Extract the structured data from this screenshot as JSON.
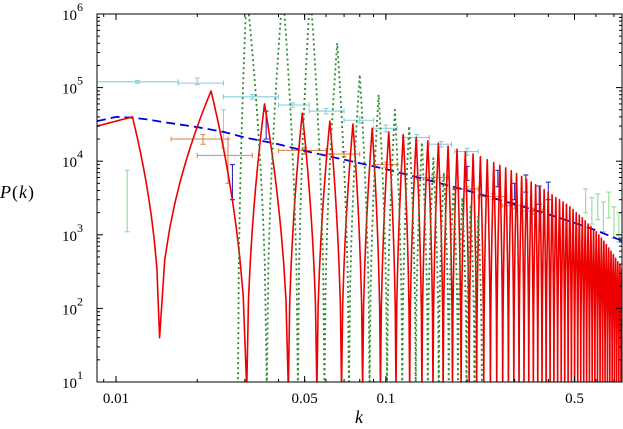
{
  "chart_data": {
    "type": "line",
    "title": "",
    "xlabel": "k",
    "ylabel": "P(k)",
    "ylabel_parts": {
      "symbol": "P",
      "open": "(",
      "var": "k",
      "close": ")"
    },
    "x_scale": "log",
    "y_scale": "log",
    "xlim": [
      0.0085,
      0.75
    ],
    "ylim": [
      10,
      1000000
    ],
    "x_ticks": [
      {
        "value": 0.01,
        "label": "0.01"
      },
      {
        "value": 0.05,
        "label": "0.05"
      },
      {
        "value": 0.1,
        "label": "0.1"
      },
      {
        "value": 0.5,
        "label": "0.5"
      }
    ],
    "y_ticks": [
      {
        "value": 10,
        "base": "10",
        "exp": "1"
      },
      {
        "value": 100,
        "base": "10",
        "exp": "2"
      },
      {
        "value": 1000,
        "base": "10",
        "exp": "3"
      },
      {
        "value": 10000,
        "base": "10",
        "exp": "4"
      },
      {
        "value": 100000,
        "base": "10",
        "exp": "5"
      },
      {
        "value": 1000000,
        "base": "10",
        "exp": "6"
      }
    ],
    "grid": false,
    "legend": "none",
    "series": [
      {
        "style": "dashed",
        "color": "#0000dd",
        "x": [
          0.0085,
          0.01,
          0.0115,
          0.013,
          0.015,
          0.02,
          0.025,
          0.03,
          0.04,
          0.05,
          0.07,
          0.1,
          0.15,
          0.2,
          0.3,
          0.4,
          0.5,
          0.6,
          0.75
        ],
        "y": [
          35000,
          40000,
          39000,
          37000,
          34000,
          29000,
          25000,
          21000,
          17000,
          13800,
          10500,
          7800,
          5300,
          4000,
          2600,
          1900,
          1450,
          1150,
          830
        ]
      },
      {
        "style": "solid",
        "color": "#ee0000",
        "peaks_x": [
          0.0085,
          0.0115,
          0.0225,
          0.0355,
          0.049,
          0.062,
          0.0755,
          0.089,
          0.1025,
          0.116,
          0.1295,
          0.143,
          0.1565,
          0.17,
          0.1835,
          0.197,
          0.2105,
          0.224,
          0.2375,
          0.251,
          0.2645,
          0.278,
          0.2915,
          0.305,
          0.3185,
          0.332,
          0.3455,
          0.359,
          0.3725,
          0.386,
          0.3995,
          0.413,
          0.4265,
          0.44,
          0.4535,
          0.467,
          0.4805,
          0.494,
          0.5075,
          0.521,
          0.5345,
          0.548,
          0.5615,
          0.575,
          0.5885,
          0.602,
          0.6155,
          0.629,
          0.6425,
          0.656,
          0.6695,
          0.683,
          0.6965,
          0.71,
          0.7235,
          0.737,
          0.75
        ],
        "peaks_y": [
          30000,
          40000,
          90000,
          60000,
          45000,
          35000,
          32000,
          28000,
          25000,
          23000,
          21000,
          19000,
          17500,
          16000,
          14500,
          13500,
          12500,
          11500,
          10500,
          9600,
          8800,
          8100,
          7400,
          6800,
          6200,
          5700,
          5200,
          4800,
          4400,
          4100,
          3800,
          3500,
          3200,
          3000,
          2800,
          2600,
          2400,
          2200,
          2000,
          1850,
          1700,
          1550,
          1400,
          1300,
          1200,
          1100,
          1000,
          900,
          820,
          740,
          660,
          600,
          540,
          480,
          430,
          390,
          350
        ],
        "troughs_x": [
          0.0145,
          0.0305,
          0.0435,
          0.0555,
          0.0685,
          0.082,
          0.0955,
          0.109,
          0.1225,
          0.136,
          0.1495,
          0.163,
          0.1765,
          0.19,
          0.2035,
          0.217,
          0.2305,
          0.244,
          0.2575,
          0.271,
          0.2845,
          0.298,
          0.3115,
          0.325,
          0.3385,
          0.352,
          0.3655,
          0.379,
          0.3925,
          0.406,
          0.4195,
          0.433,
          0.4465,
          0.46,
          0.4735,
          0.487,
          0.5005,
          0.514,
          0.5275,
          0.541,
          0.5545,
          0.568,
          0.5815,
          0.595,
          0.6085,
          0.622,
          0.6355,
          0.649,
          0.6625,
          0.676,
          0.6895,
          0.703,
          0.7165,
          0.73,
          0.7435
        ],
        "troughs_y": [
          40,
          8,
          8,
          8,
          8,
          8,
          8,
          8,
          8,
          8,
          8,
          8,
          8,
          8,
          8,
          8,
          8,
          8,
          8,
          8,
          8,
          8,
          8,
          8,
          8,
          8,
          8,
          8,
          8,
          8,
          8,
          8,
          8,
          8,
          8,
          8,
          8,
          8,
          8,
          8,
          8,
          8,
          8,
          8,
          8,
          8,
          8,
          8,
          8,
          8,
          8,
          8,
          8,
          8,
          8
        ]
      },
      {
        "style": "dotted",
        "color": "#2e8b2e",
        "peaks_x": [
          0.0305,
          0.0415,
          0.0525,
          0.066,
          0.08,
          0.094,
          0.108,
          0.122,
          0.136,
          0.15,
          0.164,
          0.178,
          0.192,
          0.206,
          0.22
        ],
        "peaks_y": [
          2000000,
          2000000,
          2000000,
          400000,
          150000,
          80000,
          50000,
          30000,
          18000,
          11000,
          7000,
          4500,
          3200,
          2400,
          1800
        ],
        "troughs_x": [
          0.0283,
          0.0362,
          0.0472,
          0.0592,
          0.073,
          0.087,
          0.101,
          0.115,
          0.129,
          0.143,
          0.157,
          0.171,
          0.185,
          0.199,
          0.213,
          0.227
        ],
        "troughs_y": [
          8,
          8,
          8,
          8,
          8,
          8,
          8,
          8,
          8,
          8,
          8,
          8,
          8,
          8,
          8,
          8
        ]
      }
    ],
    "error_bar_sets": [
      {
        "color": "#87cede",
        "points": [
          {
            "x": 0.012,
            "y": 120000,
            "xlo": 0.0085,
            "xhi": 0.017,
            "ylo": 115000,
            "yhi": 125000
          },
          {
            "x": 0.02,
            "y": 115000,
            "xlo": 0.017,
            "xhi": 0.025,
            "ylo": 110000,
            "yhi": 135000
          },
          {
            "x": 0.032,
            "y": 75000,
            "xlo": 0.025,
            "xhi": 0.04,
            "ylo": 70000,
            "yhi": 80000
          },
          {
            "x": 0.045,
            "y": 58000,
            "xlo": 0.04,
            "xhi": 0.052,
            "ylo": 54000,
            "yhi": 62000
          },
          {
            "x": 0.06,
            "y": 48000,
            "xlo": 0.052,
            "xhi": 0.07,
            "ylo": 44000,
            "yhi": 52000
          },
          {
            "x": 0.08,
            "y": 36000,
            "xlo": 0.07,
            "xhi": 0.09,
            "ylo": 33000,
            "yhi": 40000
          },
          {
            "x": 0.1,
            "y": 28000,
            "xlo": 0.09,
            "xhi": 0.11,
            "ylo": 25000,
            "yhi": 31000
          },
          {
            "x": 0.13,
            "y": 21000,
            "xlo": 0.115,
            "xhi": 0.145,
            "ylo": 19000,
            "yhi": 23000
          },
          {
            "x": 0.16,
            "y": 17000,
            "xlo": 0.145,
            "xhi": 0.175,
            "ylo": 15500,
            "yhi": 18500
          },
          {
            "x": 0.2,
            "y": 13500,
            "xlo": 0.18,
            "xhi": 0.22,
            "ylo": 12000,
            "yhi": 15000
          }
        ]
      },
      {
        "color": "#e08a50",
        "points": [
          {
            "x": 0.021,
            "y": 20000,
            "xlo": 0.016,
            "xhi": 0.026,
            "ylo": 17000,
            "yhi": 23000
          },
          {
            "x": 0.026,
            "y": 12000,
            "xlo": 0.02,
            "xhi": 0.032,
            "ylo": 5000,
            "yhi": 20000
          },
          {
            "x": 0.05,
            "y": 14000,
            "xlo": 0.04,
            "xhi": 0.06,
            "ylo": 12500,
            "yhi": 15500
          },
          {
            "x": 0.07,
            "y": 12500,
            "xlo": 0.06,
            "xhi": 0.08,
            "ylo": 11500,
            "yhi": 13500
          },
          {
            "x": 0.1,
            "y": 9000,
            "xlo": 0.09,
            "xhi": 0.11,
            "ylo": 8300,
            "yhi": 9700
          },
          {
            "x": 0.15,
            "y": 6000,
            "xlo": 0.13,
            "xhi": 0.17,
            "ylo": 5500,
            "yhi": 6500
          },
          {
            "x": 0.2,
            "y": 4200,
            "xlo": 0.18,
            "xhi": 0.22,
            "ylo": 3900,
            "yhi": 4500
          },
          {
            "x": 0.25,
            "y": 3300,
            "xlo": 0.22,
            "xhi": 0.28,
            "ylo": 3000,
            "yhi": 3600
          },
          {
            "x": 0.3,
            "y": 2500,
            "xlo": 0.27,
            "xhi": 0.33,
            "ylo": 2250,
            "yhi": 2750
          },
          {
            "x": 0.35,
            "y": 2100,
            "xlo": 0.32,
            "xhi": 0.38,
            "ylo": 1900,
            "yhi": 2300
          }
        ]
      },
      {
        "color": "#2a2ac8",
        "points": [
          {
            "x": 0.027,
            "y": 5000,
            "xlo": 0.027,
            "xhi": 0.027,
            "ylo": 3000,
            "yhi": 9000
          },
          {
            "x": 0.036,
            "y": 35000,
            "xlo": 0.036,
            "xhi": 0.036,
            "ylo": 20000,
            "yhi": 48000
          },
          {
            "x": 0.2,
            "y": 7000,
            "xlo": 0.2,
            "xhi": 0.2,
            "ylo": 5500,
            "yhi": 8500
          },
          {
            "x": 0.26,
            "y": 6000,
            "xlo": 0.26,
            "xhi": 0.26,
            "ylo": 4500,
            "yhi": 7500
          },
          {
            "x": 0.3,
            "y": 4000,
            "xlo": 0.3,
            "xhi": 0.3,
            "ylo": 3000,
            "yhi": 5000
          },
          {
            "x": 0.33,
            "y": 5000,
            "xlo": 0.33,
            "xhi": 0.33,
            "ylo": 3800,
            "yhi": 6500
          },
          {
            "x": 0.37,
            "y": 3500,
            "xlo": 0.37,
            "xhi": 0.37,
            "ylo": 2600,
            "yhi": 4600
          },
          {
            "x": 0.4,
            "y": 4000,
            "xlo": 0.4,
            "xhi": 0.4,
            "ylo": 3000,
            "yhi": 5200
          }
        ]
      },
      {
        "color": "#90e090",
        "points": [
          {
            "x": 0.011,
            "y": 2500,
            "xlo": 0.011,
            "xhi": 0.011,
            "ylo": 1100,
            "yhi": 7500
          },
          {
            "x": 0.025,
            "y": 30000,
            "xlo": 0.025,
            "xhi": 0.025,
            "ylo": 15000,
            "yhi": 50000
          },
          {
            "x": 0.55,
            "y": 3000,
            "xlo": 0.55,
            "xhi": 0.55,
            "ylo": 2000,
            "yhi": 4200
          },
          {
            "x": 0.58,
            "y": 2200,
            "xlo": 0.58,
            "xhi": 0.58,
            "ylo": 1400,
            "yhi": 3200
          },
          {
            "x": 0.61,
            "y": 2500,
            "xlo": 0.61,
            "xhi": 0.61,
            "ylo": 1600,
            "yhi": 3600
          },
          {
            "x": 0.64,
            "y": 1800,
            "xlo": 0.64,
            "xhi": 0.64,
            "ylo": 1100,
            "yhi": 2800
          },
          {
            "x": 0.67,
            "y": 2600,
            "xlo": 0.67,
            "xhi": 0.67,
            "ylo": 1700,
            "yhi": 3800
          },
          {
            "x": 0.7,
            "y": 1500,
            "xlo": 0.7,
            "xhi": 0.7,
            "ylo": 900,
            "yhi": 2400
          },
          {
            "x": 0.73,
            "y": 1300,
            "xlo": 0.73,
            "xhi": 0.73,
            "ylo": 800,
            "yhi": 2000
          }
        ]
      }
    ]
  }
}
